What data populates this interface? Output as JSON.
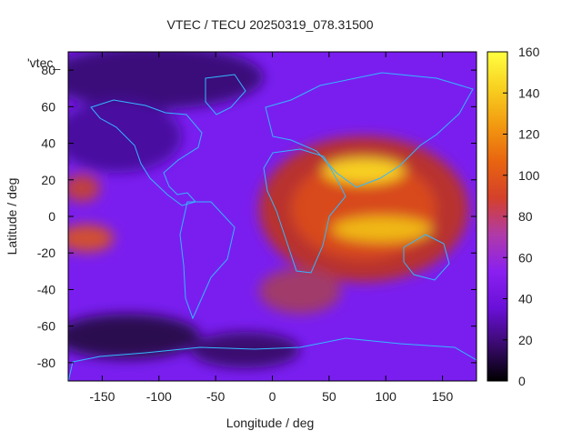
{
  "chart_data": {
    "type": "heatmap",
    "title": "VTEC / TECU 20250319_078.31500",
    "xlabel": "Longitude / deg",
    "ylabel": "Latitude / deg",
    "xlim": [
      -180,
      180
    ],
    "ylim": [
      -90,
      90
    ],
    "x_ticks": [
      "-150",
      "-100",
      "-50",
      "0",
      "50",
      "100",
      "150"
    ],
    "y_ticks": [
      "-80",
      "-60",
      "-40",
      "-20",
      "0",
      "20",
      "40",
      "60",
      "80"
    ],
    "colorbar": {
      "range": [
        0,
        160
      ],
      "ticks": [
        "0",
        "20",
        "40",
        "60",
        "80",
        "100",
        "120",
        "140",
        "160"
      ],
      "colors": [
        "#000000",
        "#3a0a6e",
        "#6a10d8",
        "#8a20f0",
        "#b03aa8",
        "#d4402a",
        "#e86410",
        "#f29a10",
        "#f8d020",
        "#ffff40"
      ]
    },
    "legend_label": "'vtec_",
    "peaks": [
      {
        "lon": 85,
        "lat": 24,
        "value": 135
      },
      {
        "lon": 90,
        "lat": -10,
        "value": 130
      },
      {
        "lon": -170,
        "lat": -15,
        "value": 90
      }
    ],
    "background_value": 45,
    "coastline_color": "#33b8ff"
  }
}
